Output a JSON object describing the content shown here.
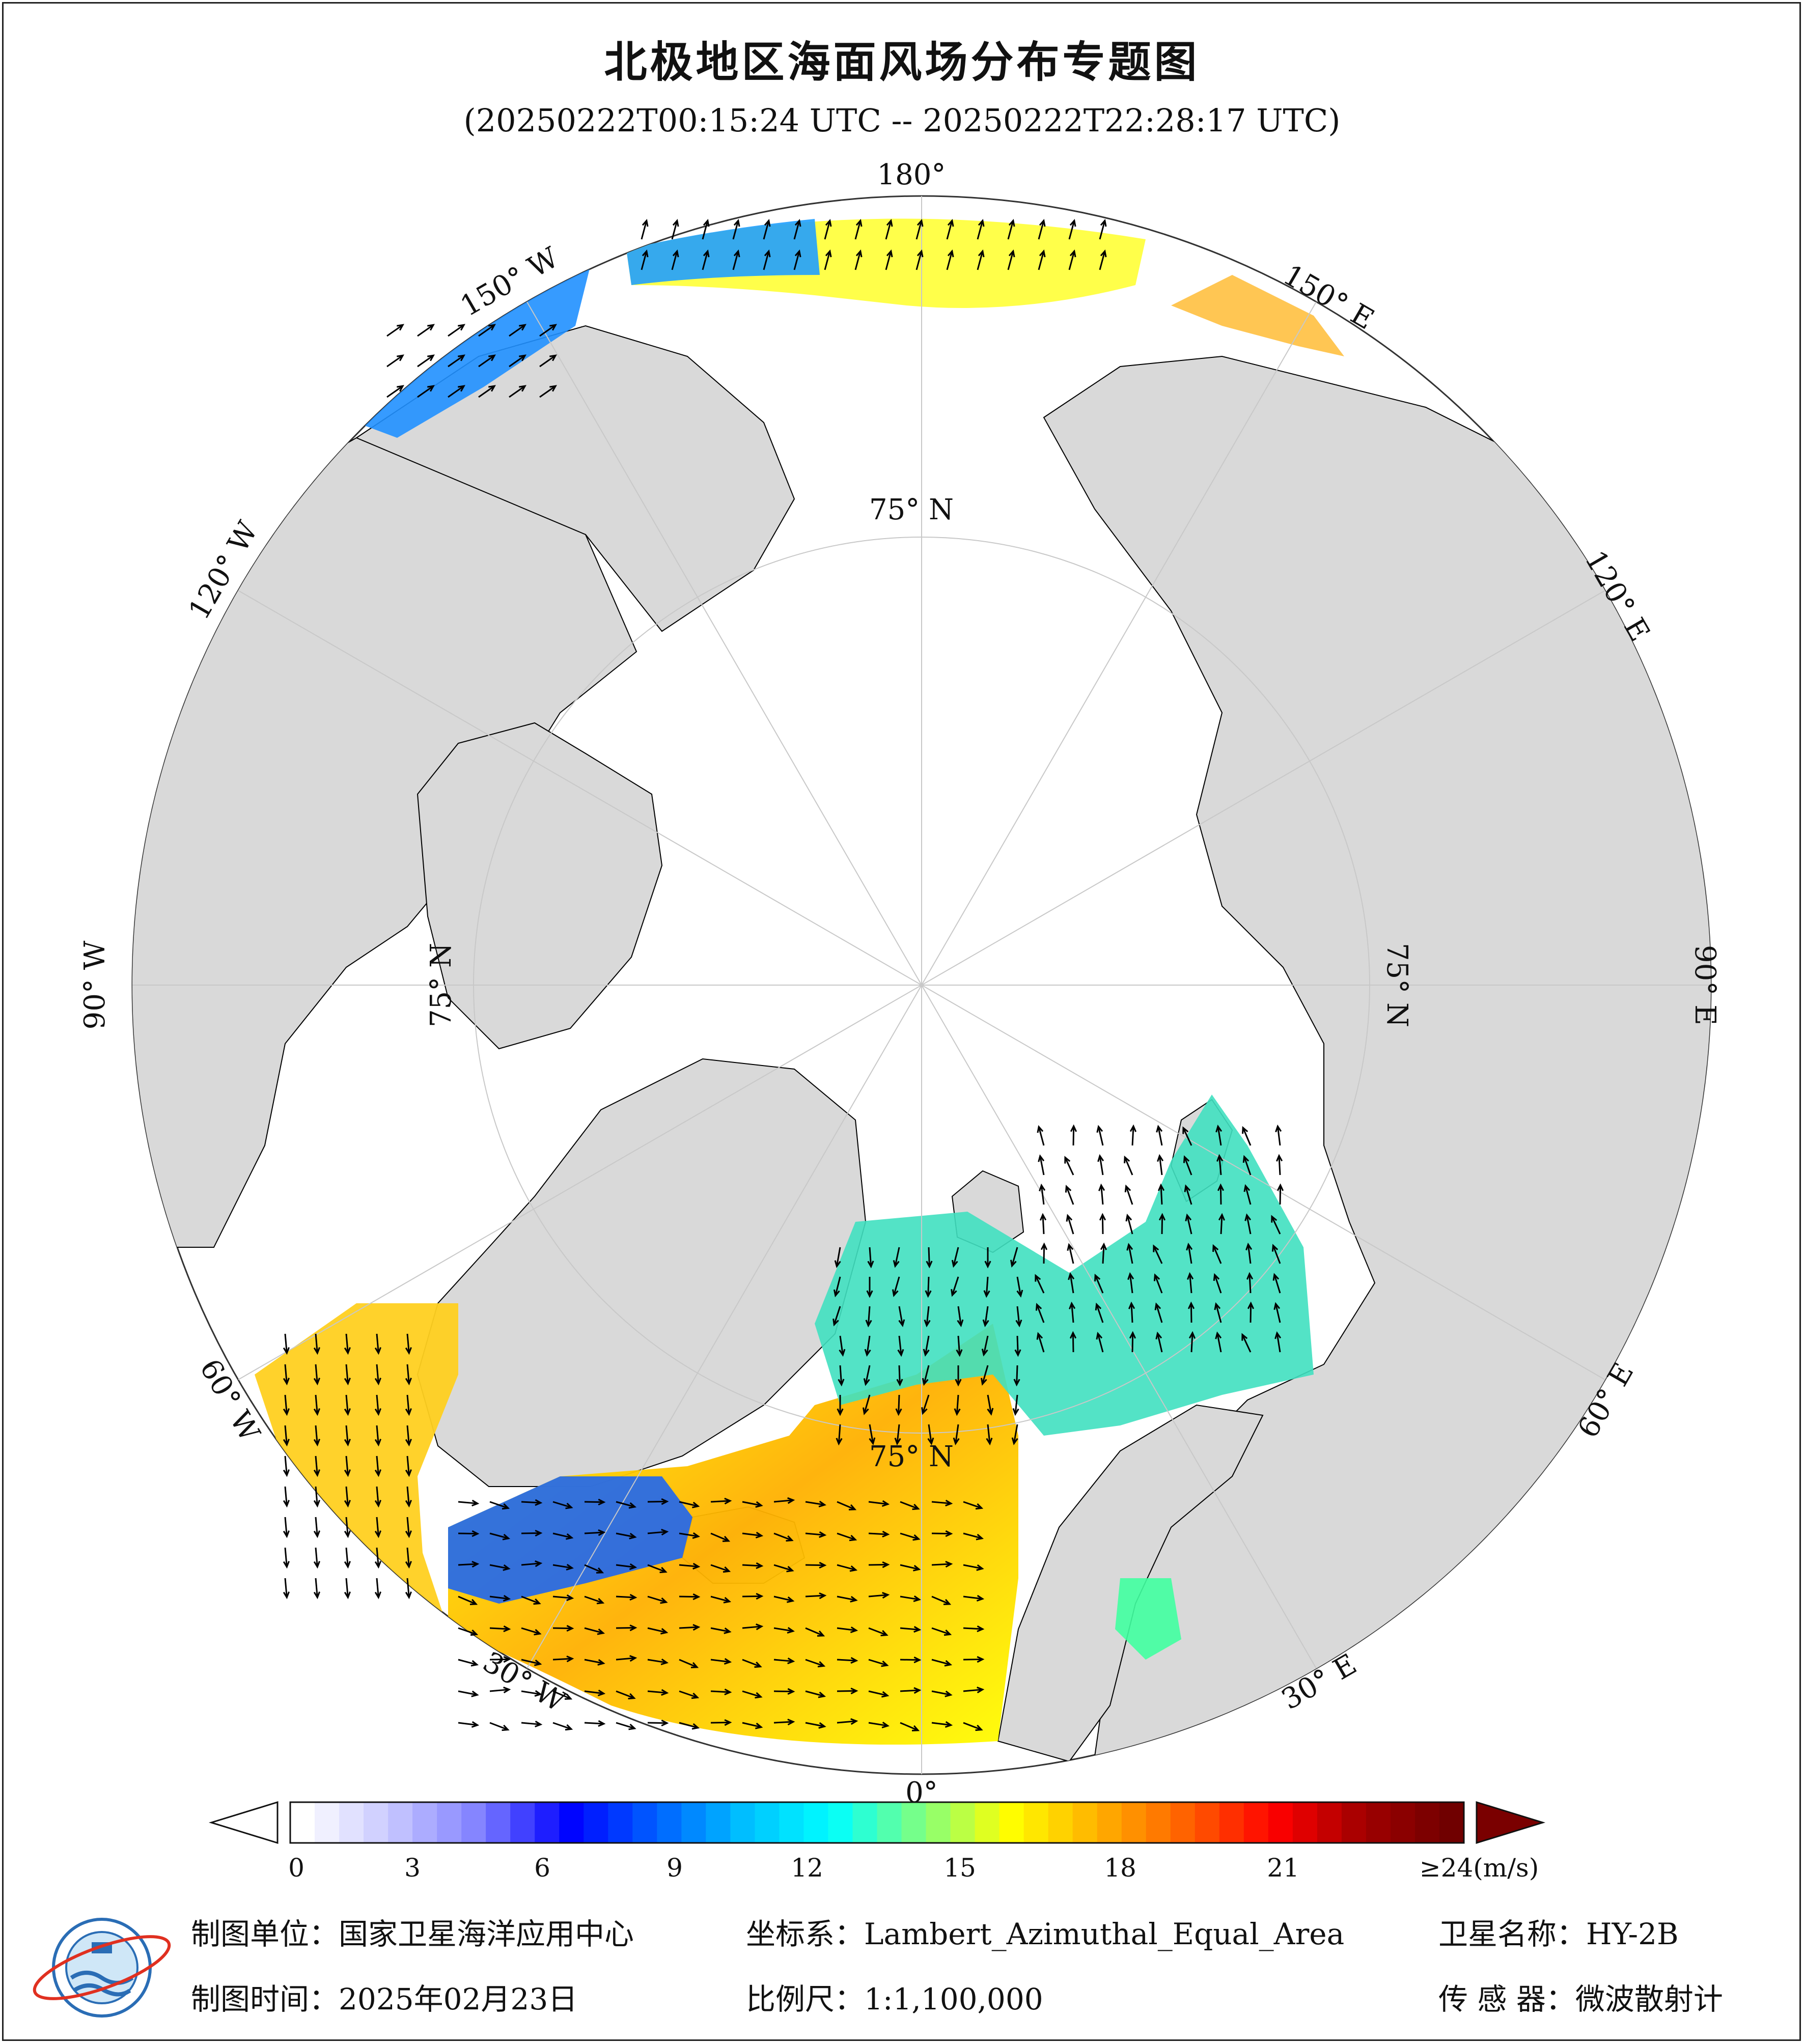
{
  "title": "北极地区海面风场分布专题图",
  "subtitle": "(20250222T00:15:24 UTC -- 20250222T22:28:17 UTC)",
  "map": {
    "projection": "Lambert_Azimuthal_Equal_Area",
    "center": "North Pole",
    "longitude_labels": [
      "180°",
      "150° W",
      "120° W",
      "90° W",
      "60° W",
      "30° W",
      "0°",
      "30° E",
      "60° E",
      "90° E",
      "120° E",
      "150° E"
    ],
    "latitude_labels": [
      "75° N",
      "75° N",
      "75° N",
      "75° N"
    ],
    "colors": {
      "land": "#d9d9d9",
      "sea_ice_no_data": "#ffffff",
      "coastline": "#000000",
      "graticule": "#c8c8c8"
    }
  },
  "colorbar": {
    "ticks": [
      "0",
      "3",
      "6",
      "9",
      "12",
      "15",
      "18",
      "21",
      "≥24(m/s)"
    ],
    "min": 0,
    "max": 24,
    "unit": "m/s",
    "colors": [
      "#ffffff",
      "#c8c8ff",
      "#8080ff",
      "#0000ff",
      "#0060ff",
      "#00c0ff",
      "#00ffff",
      "#80ff80",
      "#ffff00",
      "#ffb000",
      "#ff6000",
      "#ff0000",
      "#a00000",
      "#700000"
    ]
  },
  "footer": {
    "org_label": "制图单位：",
    "org_value": "国家卫星海洋应用中心",
    "crs_label": "坐标系：",
    "crs_value": "Lambert_Azimuthal_Equal_Area",
    "sat_label": "卫星名称：",
    "sat_value": "HY-2B",
    "date_label": "制图时间：",
    "date_value": "2025年02月23日",
    "scale_label": "比例尺：",
    "scale_value": "1:1,100,000",
    "sensor_label": "传 感 器：",
    "sensor_value": "微波散射计"
  }
}
